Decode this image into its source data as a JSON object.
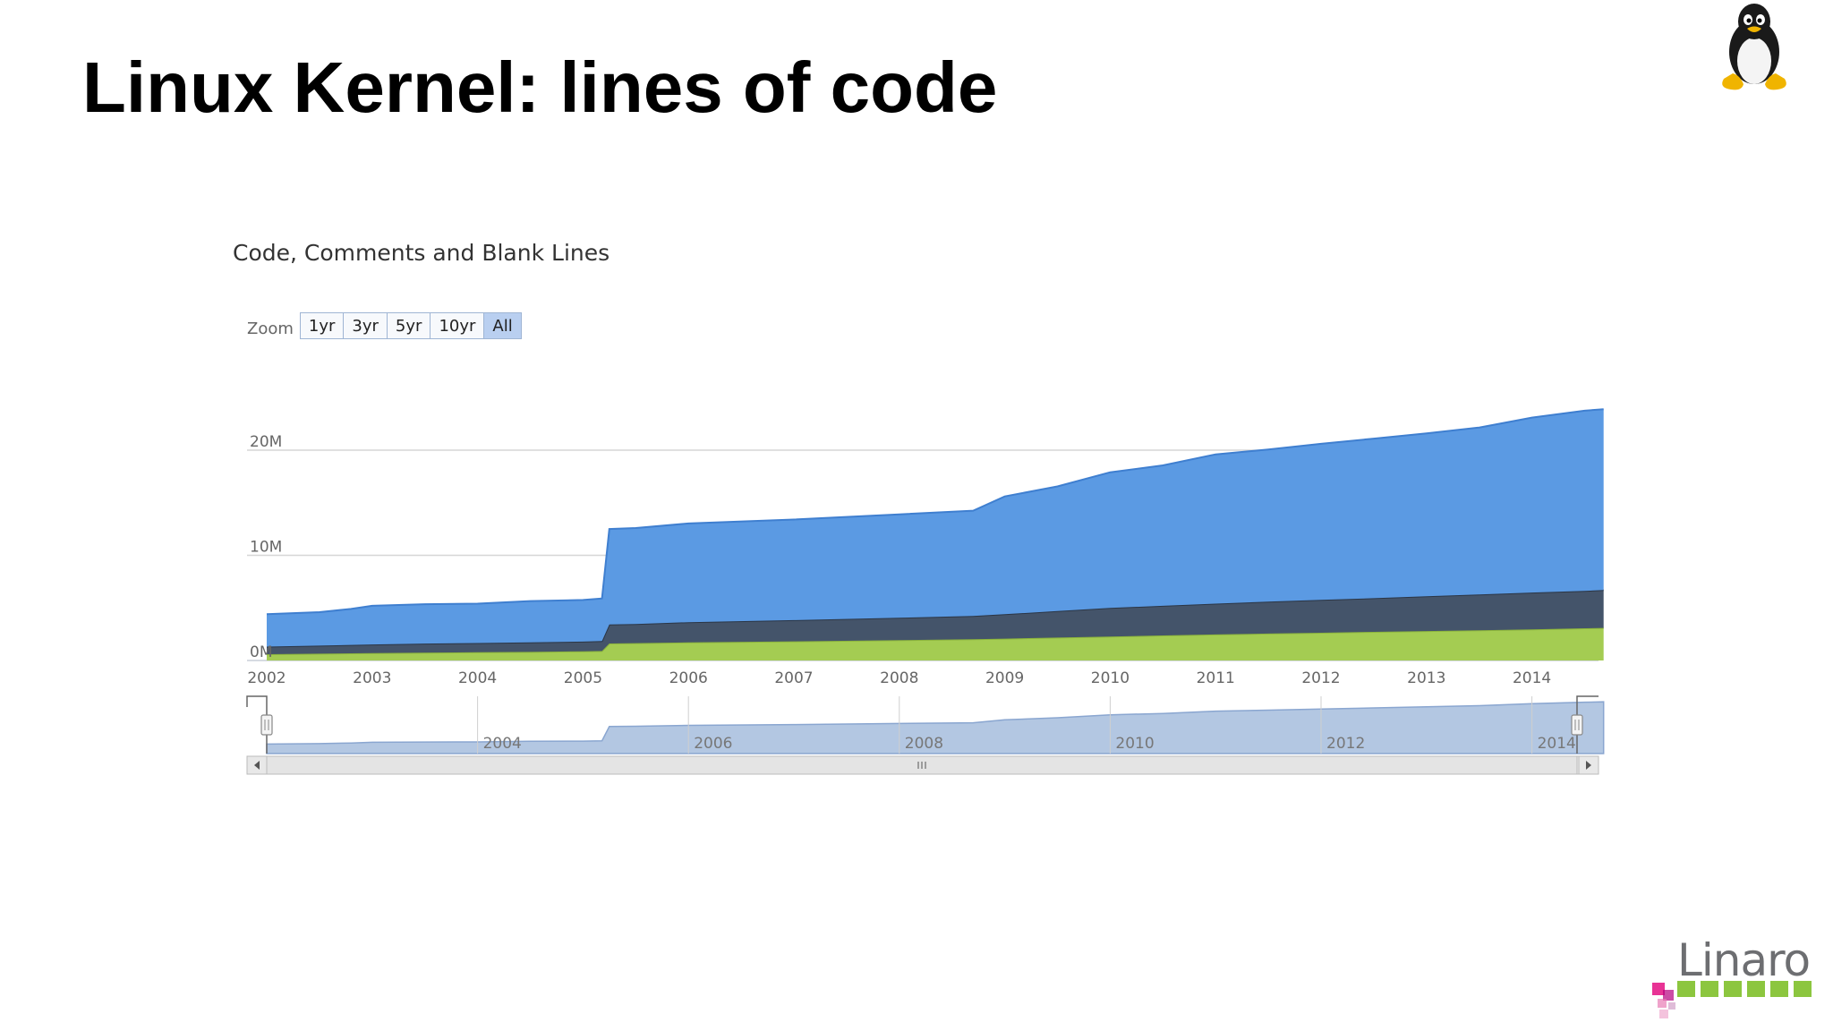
{
  "slide": {
    "title": "Linux Kernel: lines of code",
    "logo_top_right": "tux-penguin-icon",
    "logo_bottom_right": "Linaro"
  },
  "zoom": {
    "label": "Zoom",
    "buttons": [
      "1yr",
      "3yr",
      "5yr",
      "10yr",
      "All"
    ],
    "selected": "All"
  },
  "chart_data": {
    "type": "area",
    "stacked": true,
    "title": "Code, Comments and Blank Lines",
    "xlabel": "",
    "ylabel": "",
    "x_tick_labels": [
      "2002",
      "2003",
      "2004",
      "2005",
      "2006",
      "2007",
      "2008",
      "2009",
      "2010",
      "2011",
      "2012",
      "2013",
      "2014"
    ],
    "y_tick_labels": [
      "0M",
      "10M",
      "20M"
    ],
    "y_ticks": [
      0,
      10000000,
      20000000
    ],
    "ylim": [
      0,
      23500000
    ],
    "xlim": [
      2002.0,
      2014.68
    ],
    "grid": true,
    "legend": "none",
    "x": [
      2002.0,
      2002.5,
      2002.8,
      2003.0,
      2003.5,
      2004.0,
      2004.5,
      2005.0,
      2005.18,
      2005.25,
      2005.5,
      2006.0,
      2007.0,
      2008.0,
      2008.7,
      2009.0,
      2009.5,
      2010.0,
      2010.5,
      2011.0,
      2011.5,
      2012.0,
      2012.5,
      2013.0,
      2013.5,
      2014.0,
      2014.5,
      2014.68
    ],
    "series": [
      {
        "color": "#a4cc52",
        "values": [
          0.6,
          0.65,
          0.68,
          0.7,
          0.75,
          0.78,
          0.82,
          0.88,
          0.9,
          1.62,
          1.65,
          1.72,
          1.82,
          1.94,
          2.02,
          2.08,
          2.18,
          2.28,
          2.38,
          2.48,
          2.56,
          2.64,
          2.72,
          2.8,
          2.88,
          2.96,
          3.06,
          3.1
        ]
      },
      {
        "color": "#44546a",
        "values": [
          0.72,
          0.76,
          0.8,
          0.82,
          0.86,
          0.88,
          0.9,
          0.92,
          0.95,
          1.8,
          1.82,
          1.92,
          2.02,
          2.12,
          2.22,
          2.32,
          2.52,
          2.72,
          2.82,
          2.92,
          3.04,
          3.12,
          3.2,
          3.3,
          3.4,
          3.5,
          3.56,
          3.6
        ]
      },
      {
        "color": "#5b9ae3",
        "values": [
          3.08,
          3.19,
          3.42,
          3.68,
          3.74,
          3.74,
          3.93,
          3.95,
          4.05,
          9.08,
          9.13,
          9.39,
          9.56,
          9.84,
          10.01,
          11.2,
          11.85,
          12.9,
          13.35,
          14.2,
          14.46,
          14.84,
          15.18,
          15.5,
          15.87,
          16.64,
          17.13,
          17.2
        ]
      }
    ],
    "values_unit": "millions of lines",
    "navigator": {
      "x_tick_labels": [
        "2004",
        "2006",
        "2008",
        "2010",
        "2012",
        "2014"
      ]
    }
  }
}
